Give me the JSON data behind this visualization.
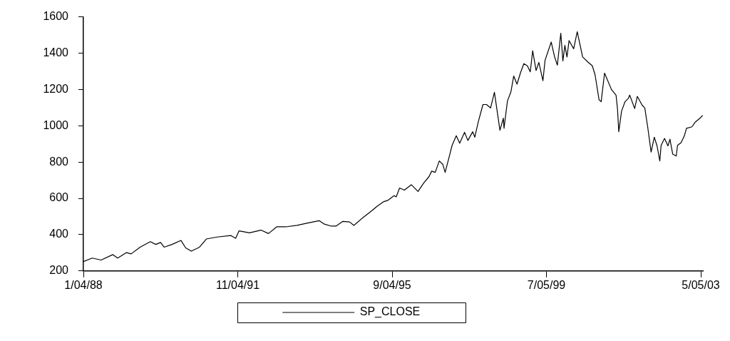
{
  "chart_data": {
    "type": "line",
    "legend": "bottom",
    "grid": false,
    "marker": "none",
    "line_style": "solid",
    "xlim": [
      "1988-01-04",
      "2003-05-24"
    ],
    "xticks": [
      {
        "value": "1988-01-04",
        "label": "1/04/88"
      },
      {
        "value": "1991-11-04",
        "label": "11/04/91"
      },
      {
        "value": "1995-09-04",
        "label": "9/04/95"
      },
      {
        "value": "1999-07-05",
        "label": "7/05/99"
      },
      {
        "value": "2003-05-05",
        "label": "5/05/03"
      }
    ],
    "ylim": [
      200,
      1600
    ],
    "yticks": [
      200,
      400,
      600,
      800,
      1000,
      1200,
      1400,
      1600
    ],
    "x": [
      "1988-01-04",
      "1988-03-24",
      "1988-06-13",
      "1988-09-27",
      "1988-11-10",
      "1989-01-29",
      "1989-03-12",
      "1989-06-01",
      "1989-09-02",
      "1989-10-21",
      "1989-12-04",
      "1990-01-05",
      "1990-03-18",
      "1990-06-07",
      "1990-07-20",
      "1990-09-09",
      "1990-11-22",
      "1991-01-23",
      "1991-05-01",
      "1991-09-03",
      "1991-10-16",
      "1991-11-16",
      "1992-02-18",
      "1992-06-01",
      "1992-08-09",
      "1992-10-22",
      "1993-01-11",
      "1993-04-25",
      "1993-07-15",
      "1993-11-11",
      "1993-12-29",
      "1994-03-01",
      "1994-04-13",
      "1994-06-14",
      "1994-08-15",
      "1994-09-22",
      "1994-12-18",
      "1995-03-07",
      "1995-04-20",
      "1995-06-21",
      "1995-07-28",
      "1995-09-22",
      "1995-10-11",
      "1995-11-11",
      "1995-12-24",
      "1996-02-25",
      "1996-04-26",
      "1996-06-15",
      "1996-08-04",
      "1996-08-28",
      "1996-09-29",
      "1996-11-05",
      "1996-12-06",
      "1996-12-28",
      "1997-02-01",
      "1997-03-01",
      "1997-04-08",
      "1997-05-09",
      "1997-06-22",
      "1997-07-22",
      "1997-09-04",
      "1997-09-23",
      "1997-10-24",
      "1997-12-06",
      "1998-01-07",
      "1998-02-13",
      "1998-03-20",
      "1998-05-09",
      "1998-06-09",
      "1998-06-15",
      "1998-07-16",
      "1998-08-17",
      "1998-09-11",
      "1998-10-11",
      "1998-11-12",
      "1998-12-12",
      "1999-01-13",
      "1999-02-08",
      "1999-03-02",
      "1999-04-02",
      "1999-04-27",
      "1999-06-03",
      "1999-06-22",
      "1999-08-17",
      "1999-09-17",
      "1999-10-12",
      "1999-11-12",
      "1999-12-01",
      "1999-12-19",
      "2000-01-07",
      "2000-01-26",
      "2000-03-08",
      "2000-04-09",
      "2000-05-28",
      "2000-07-17",
      "2000-08-24",
      "2000-09-18",
      "2000-10-24",
      "2000-11-12",
      "2000-12-13",
      "2001-02-14",
      "2001-03-27",
      "2001-04-09",
      "2001-04-21",
      "2001-05-16",
      "2001-06-16",
      "2001-07-17",
      "2001-07-29",
      "2001-09-12",
      "2001-10-06",
      "2001-11-19",
      "2001-12-13",
      "2002-01-08",
      "2002-02-08",
      "2002-03-09",
      "2002-04-03",
      "2002-04-28",
      "2002-05-10",
      "2002-06-10",
      "2002-07-11",
      "2002-07-29",
      "2002-08-23",
      "2002-09-24",
      "2002-10-06",
      "2002-11-07",
      "2002-12-07",
      "2002-12-26",
      "2003-02-14",
      "2003-03-15",
      "2003-04-28",
      "2003-05-22"
    ],
    "series": [
      {
        "name": "SP_CLOSE",
        "color": "#000000",
        "values": [
          252,
          271,
          260,
          290,
          271,
          301,
          294,
          331,
          361,
          346,
          357,
          331,
          346,
          368,
          327,
          309,
          331,
          376,
          387,
          395,
          380,
          421,
          410,
          425,
          406,
          443,
          443,
          451,
          462,
          477,
          458,
          447,
          447,
          473,
          470,
          451,
          496,
          533,
          556,
          582,
          589,
          615,
          608,
          657,
          645,
          675,
          638,
          683,
          720,
          750,
          743,
          806,
          788,
          743,
          825,
          892,
          945,
          904,
          964,
          919,
          967,
          937,
          1020,
          1117,
          1117,
          1098,
          1184,
          975,
          1042,
          986,
          1136,
          1188,
          1274,
          1229,
          1293,
          1342,
          1330,
          1297,
          1413,
          1304,
          1349,
          1248,
          1360,
          1461,
          1379,
          1334,
          1510,
          1357,
          1443,
          1379,
          1469,
          1424,
          1518,
          1379,
          1350,
          1330,
          1280,
          1143,
          1132,
          1290,
          1199,
          1169,
          1095,
          967,
          1080,
          1132,
          1151,
          1169,
          1095,
          1162,
          1113,
          1098,
          994,
          855,
          937,
          889,
          806,
          892,
          930,
          889,
          926,
          844,
          833,
          892,
          907,
          945,
          986,
          994,
          1020,
          1042,
          1057
        ]
      }
    ]
  }
}
